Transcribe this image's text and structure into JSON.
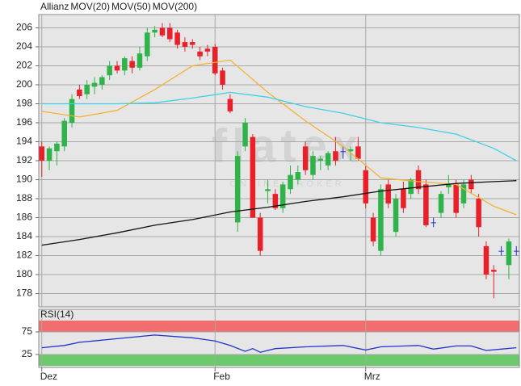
{
  "chart_data": [
    {
      "type": "candlestick",
      "watermark": [
        "flatex",
        "ONLINE BROKER"
      ],
      "series": [
        {
          "name": "Allianz",
          "type": "candlestick",
          "color": "#e8202a",
          "up_color": "#2fb34a",
          "down_color": "#e8202a",
          "flat_color": "#2233cc",
          "open": [
            193.5,
            192,
            193,
            193.5,
            196,
            199.5,
            199,
            199.8,
            200,
            201,
            202,
            201.5,
            202.5,
            201.8,
            203,
            205.5,
            206,
            206,
            205.5,
            204.5,
            204.5,
            203.5,
            203.8,
            204,
            201.5,
            198.5,
            185.5,
            193.5,
            194.5,
            186,
            188.8,
            188.5,
            187,
            189,
            190,
            193.5,
            190.5,
            192,
            191.5,
            193,
            193,
            193,
            193.5,
            191,
            186,
            182.5,
            189.5,
            184.5,
            189,
            188.5,
            191,
            189.5,
            185.5,
            186.5,
            189.2,
            189.5,
            187.5,
            190,
            188,
            183,
            180.5,
            182.5,
            181,
            182.5
          ],
          "high": [
            194,
            193.5,
            194,
            196.5,
            199,
            200,
            200.5,
            200.8,
            201,
            202.5,
            202.5,
            203,
            203,
            204,
            206,
            206.2,
            206.5,
            206.5,
            205.8,
            205,
            204.8,
            204,
            204.2,
            204.3,
            201.8,
            199,
            193,
            196.5,
            194.8,
            186.5,
            190,
            189,
            189.8,
            191.5,
            191.5,
            194,
            193,
            192.5,
            193,
            194.5,
            193.5,
            193.5,
            194.5,
            191.5,
            186.5,
            189.5,
            190,
            188.5,
            189.8,
            190.2,
            191.5,
            190,
            186,
            188.8,
            190.5,
            190,
            190,
            190.5,
            188.5,
            183.5,
            181,
            183,
            183.8,
            183
          ],
          "low": [
            190.3,
            191,
            191.5,
            193,
            195.5,
            198.5,
            198.5,
            199,
            199.5,
            200.5,
            201.2,
            201,
            201.2,
            201.5,
            202.5,
            205,
            205,
            204.5,
            203.8,
            203.5,
            203.8,
            202.6,
            203,
            201,
            199.5,
            197,
            184.5,
            193,
            186,
            182,
            187.5,
            186.8,
            186.5,
            188.5,
            189.5,
            190.5,
            190,
            191,
            191,
            191.5,
            192.2,
            192,
            192,
            187,
            183,
            182,
            187,
            184,
            186.5,
            188,
            188.5,
            185,
            185,
            186,
            188.5,
            186,
            187,
            188.5,
            184,
            179.5,
            177.5,
            182,
            179.5,
            182
          ],
          "close": [
            192,
            193.3,
            193.8,
            196.2,
            198.5,
            198.8,
            200,
            200.2,
            200.8,
            202,
            201.5,
            202.8,
            201.8,
            203.3,
            205.5,
            205.8,
            205.2,
            204.8,
            204.2,
            204,
            204.2,
            203,
            203.5,
            201.2,
            200,
            197.2,
            192.5,
            196,
            186,
            182.5,
            189,
            187,
            189.5,
            190.5,
            190.8,
            191,
            192.5,
            192.2,
            192.8,
            192,
            193,
            193.2,
            192.2,
            187.5,
            183.5,
            189,
            187.5,
            188,
            187,
            190,
            189,
            185.2,
            185.5,
            188.5,
            189.5,
            186.5,
            189.5,
            189,
            185,
            180,
            180.3,
            182.5,
            183.5,
            182.5
          ]
        },
        {
          "name": "MOV(20)",
          "type": "line",
          "color": "#f2b233",
          "x": [
            0,
            5,
            10,
            15,
            20,
            25,
            30,
            35,
            40,
            45,
            50,
            55,
            60,
            63
          ],
          "values": [
            197.2,
            196.6,
            197.3,
            199.5,
            202,
            202.6,
            199.2,
            196.2,
            193.5,
            190.2,
            189.8,
            189.5,
            187.2,
            186.3
          ]
        },
        {
          "name": "MOV(50)",
          "type": "line",
          "color": "#3fd0e8",
          "x": [
            0,
            5,
            10,
            15,
            20,
            25,
            30,
            35,
            40,
            45,
            50,
            55,
            60,
            63
          ],
          "values": [
            198,
            198,
            198,
            198.1,
            198.6,
            199.2,
            198.7,
            197.7,
            197,
            196,
            195.5,
            194.8,
            193.3,
            192
          ]
        },
        {
          "name": "MOV(200)",
          "type": "line",
          "color": "#111111",
          "x": [
            0,
            5,
            10,
            15,
            20,
            25,
            30,
            35,
            40,
            45,
            50,
            55,
            60,
            63
          ],
          "values": [
            183.1,
            183.7,
            184.4,
            185.2,
            185.8,
            186.6,
            187.1,
            187.7,
            188.2,
            188.8,
            189.2,
            189.6,
            189.8,
            189.9
          ]
        }
      ],
      "xlim": [
        -0.4,
        63.4
      ],
      "ylim": [
        176.6,
        207.4
      ],
      "yticks": [
        178,
        180,
        182,
        184,
        186,
        188,
        190,
        192,
        194,
        196,
        198,
        200,
        202,
        204,
        206
      ],
      "grid": true
    },
    {
      "type": "line",
      "series": [
        {
          "name": "RSI(14)",
          "color": "#2233cc",
          "x": [
            0,
            3,
            5,
            10,
            15,
            20,
            23,
            25,
            27,
            28,
            29,
            31,
            35,
            40,
            43,
            45,
            50,
            52,
            55,
            57,
            59,
            61,
            63
          ],
          "values": [
            40,
            45,
            52,
            60,
            68,
            62,
            55,
            45,
            32,
            38,
            30,
            38,
            42,
            45,
            35,
            42,
            45,
            37,
            44,
            44,
            34,
            37,
            40
          ]
        }
      ],
      "bands": [
        {
          "from": 75,
          "to": 100,
          "color": "#f26d6d"
        },
        {
          "from": 0,
          "to": 25,
          "color": "#6cc96c"
        }
      ],
      "xlim": [
        -0.4,
        63.4
      ],
      "xticks": [
        {
          "value": 0,
          "label": "Dez"
        },
        {
          "value": 23,
          "label": "Feb"
        },
        {
          "value": 43,
          "label": "Mrz"
        }
      ],
      "ylim": [
        0,
        100
      ],
      "yticks": [
        25,
        75
      ],
      "grid": true
    }
  ]
}
